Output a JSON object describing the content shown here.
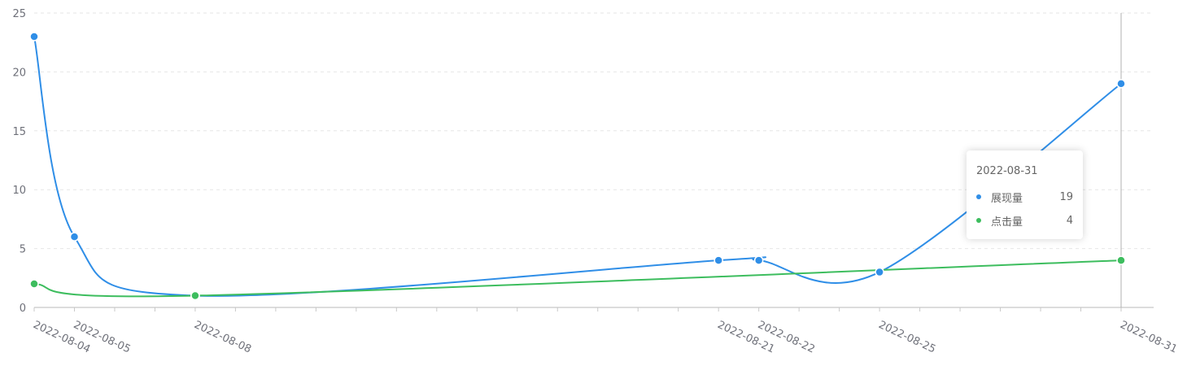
{
  "chart_data": {
    "type": "line",
    "smooth": true,
    "x": [
      "2022-08-04",
      "2022-08-05",
      "2022-08-08",
      "2022-08-21",
      "2022-08-22",
      "2022-08-25",
      "2022-08-31"
    ],
    "series": [
      {
        "name": "展现量",
        "color": "#2f8ee7",
        "values": [
          23,
          6,
          1,
          4,
          4,
          3,
          19
        ]
      },
      {
        "name": "点击量",
        "color": "#3dbd5e",
        "values": [
          2,
          null,
          1,
          null,
          null,
          null,
          4
        ]
      }
    ],
    "ylim": [
      0,
      25
    ],
    "yticks": [
      0,
      5,
      10,
      15,
      20,
      25
    ],
    "grid": true,
    "axis_pointer_x": "2022-08-31"
  },
  "tooltip": {
    "title": "2022-08-31",
    "rows": [
      {
        "name": "展现量",
        "value": "19"
      },
      {
        "name": "点击量",
        "value": "4"
      }
    ]
  }
}
